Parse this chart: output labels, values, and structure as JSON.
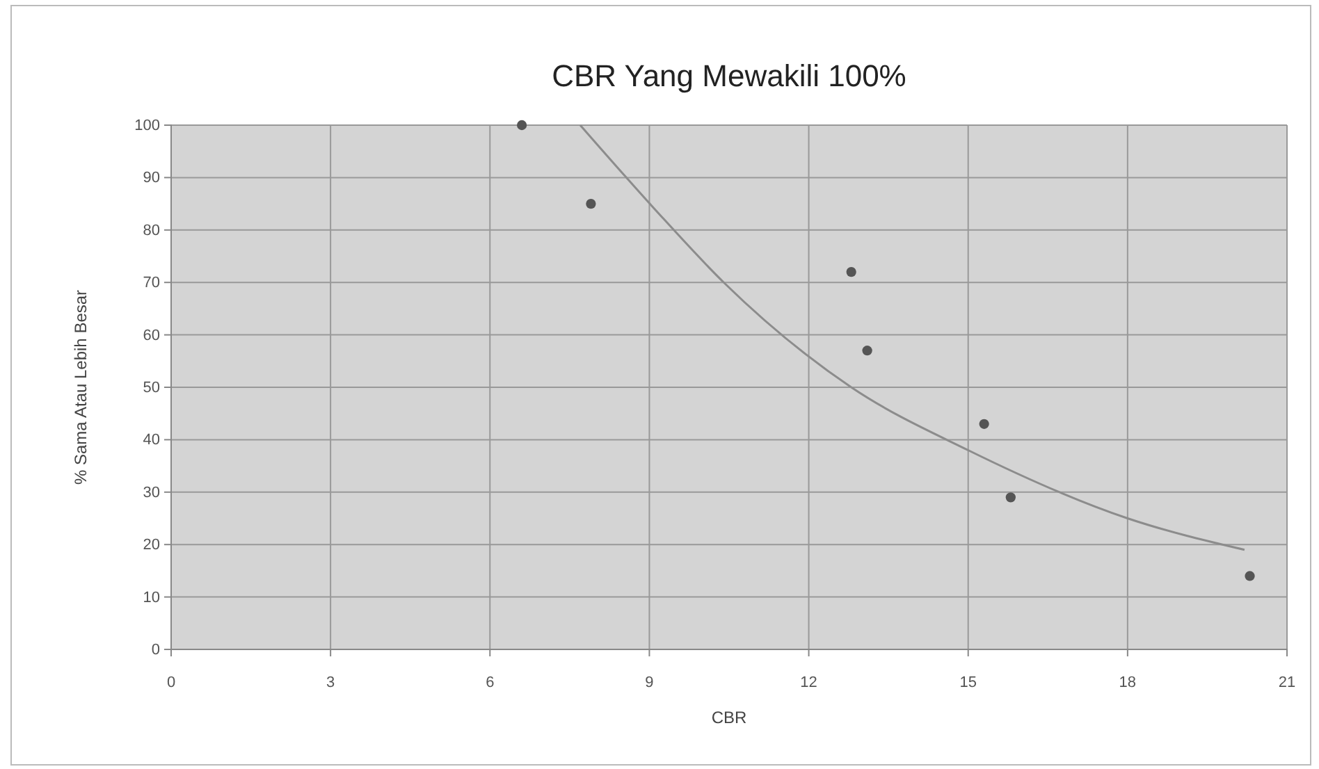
{
  "chart_data": {
    "type": "scatter",
    "title": "CBR Yang Mewakili 100%",
    "xlabel": "CBR",
    "ylabel": "% Sama Atau Lebih Besar",
    "xlim": [
      0,
      21
    ],
    "xticks": [
      0,
      3,
      6,
      9,
      12,
      15,
      18,
      21
    ],
    "ylim": [
      0,
      100
    ],
    "yticks": [
      0,
      10,
      20,
      30,
      40,
      50,
      60,
      70,
      80,
      90,
      100
    ],
    "grid": true,
    "series": [
      {
        "color": "#555555",
        "marker": "circle",
        "x": [
          6.6,
          7.9,
          12.8,
          13.1,
          15.3,
          15.8,
          20.3
        ],
        "values": [
          100,
          85,
          72,
          57,
          43,
          29,
          14
        ]
      },
      {
        "type": "line",
        "color": "#8c8c8c",
        "marker": "none",
        "line_style": "solid",
        "x": [
          7.7,
          9.1,
          10.4,
          12.8,
          15,
          18,
          20.2
        ],
        "values": [
          100,
          84,
          70,
          50,
          38,
          25,
          19
        ]
      }
    ]
  }
}
